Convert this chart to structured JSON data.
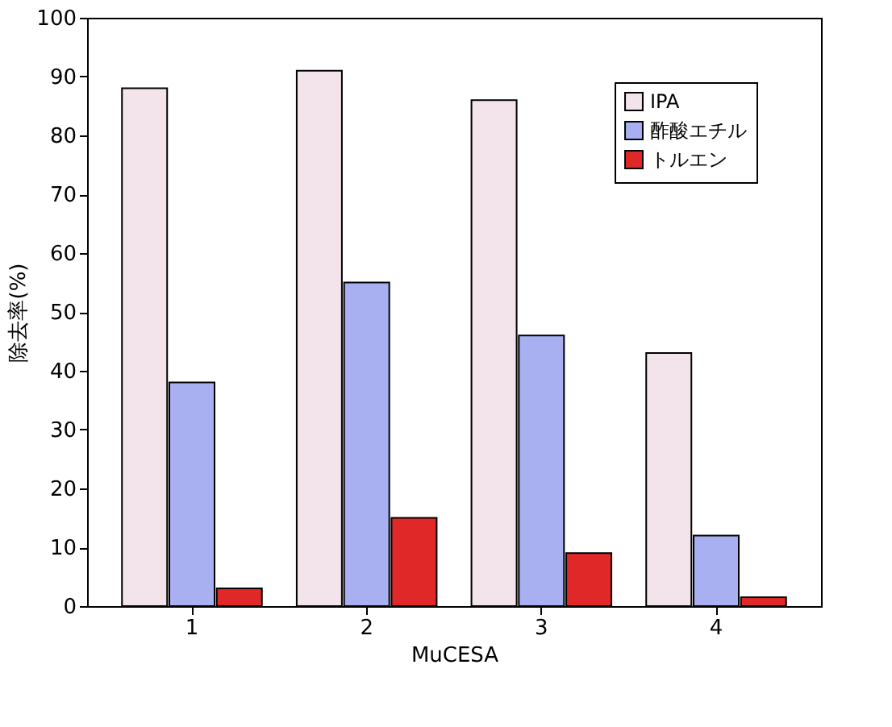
{
  "chart_data": {
    "type": "bar",
    "xlabel": "MuCESA",
    "ylabel": "除去率(%)",
    "categories": [
      "1",
      "2",
      "3",
      "4"
    ],
    "series": [
      {
        "name": "IPA",
        "color": "#f3e3ea",
        "values": [
          88,
          91,
          86,
          43
        ]
      },
      {
        "name": "酢酸エチル",
        "color": "#a9b0f2",
        "values": [
          38,
          55,
          46,
          12
        ]
      },
      {
        "name": "トルエン",
        "color": "#e02828",
        "values": [
          3,
          15,
          9,
          1.5
        ]
      }
    ],
    "ylim": [
      0,
      100
    ],
    "yticks": [
      0,
      10,
      20,
      30,
      40,
      50,
      60,
      70,
      80,
      90,
      100
    ],
    "grid": false,
    "legend": "top right"
  }
}
